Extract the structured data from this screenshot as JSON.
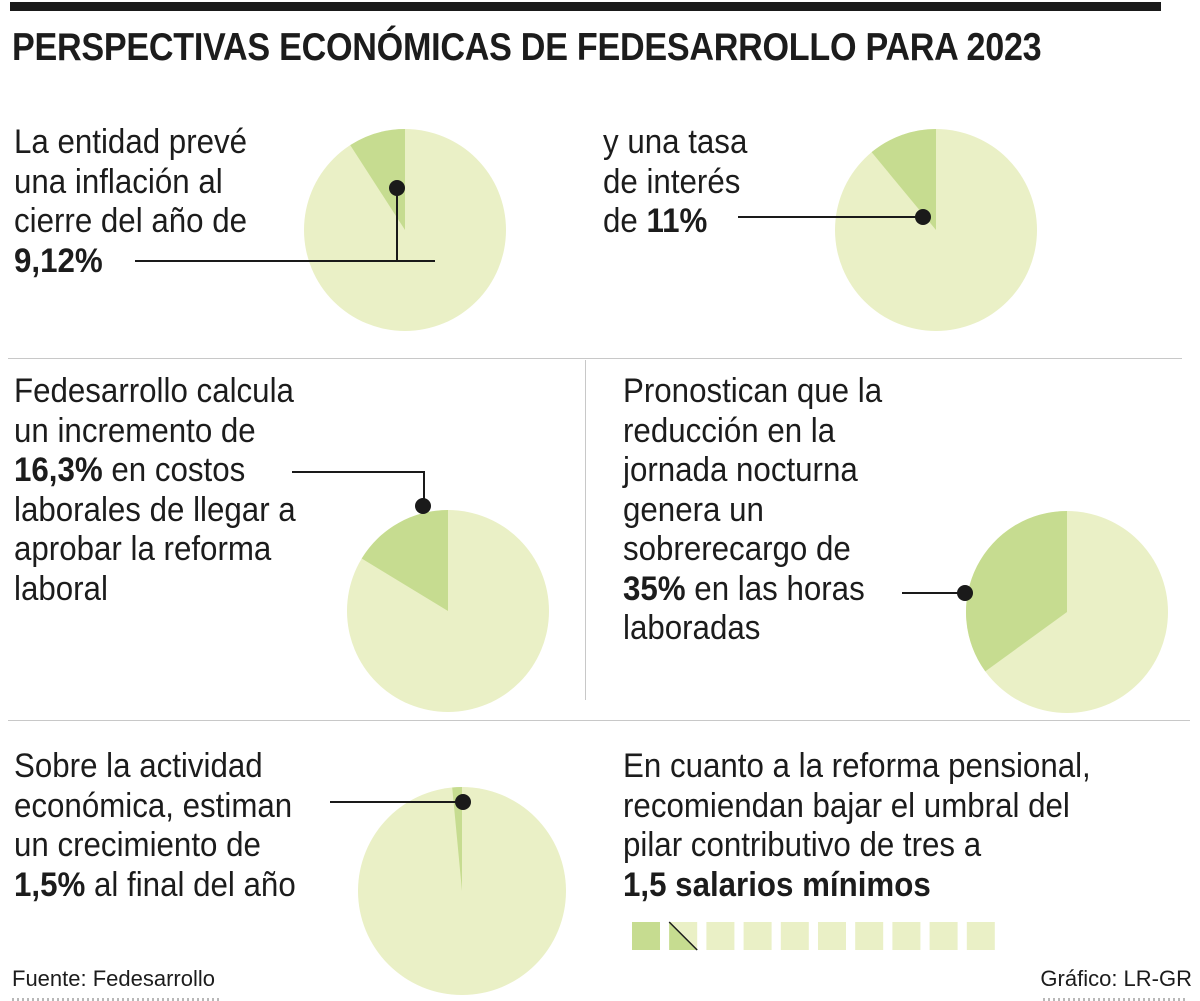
{
  "title": "PERSPECTIVAS ECONÓMICAS DE FEDESARROLLO PARA 2023",
  "colors": {
    "pie_light": "#eaf0c6",
    "pie_accent": "#c6dc90",
    "bar": "#1a1a1a",
    "line": "#1a1a1a"
  },
  "panels": {
    "inflation": {
      "l1": "La entidad prevé",
      "l2": "una inflación al",
      "l3": "cierre del año de",
      "value": "9,12%"
    },
    "interest": {
      "l1": "y una tasa",
      "l2": "de interés",
      "l3_pre": "de ",
      "value": "11%"
    },
    "labor_costs": {
      "l1": "Fedesarrollo calcula",
      "l2": "un incremento de",
      "value": "16,3%",
      "l3_post": " en costos",
      "l4": "laborales de llegar a",
      "l5": "aprobar la reforma",
      "l6": "laboral"
    },
    "night_shift": {
      "l1": "Pronostican que la",
      "l2": "reducción en la",
      "l3": "jornada nocturna",
      "l4": "genera un",
      "l5": "sobrerecargo de",
      "value": "35%",
      "l6_post": " en las horas",
      "l7": "laboradas"
    },
    "growth": {
      "l1": "Sobre la actividad",
      "l2": "económica, estiman",
      "l3": "un crecimiento de",
      "value": "1,5%",
      "l4_post": " al final del año"
    },
    "pension": {
      "l1": "En cuanto a la reforma pensional,",
      "l2": "recomiendan bajar el umbral del",
      "l3": "pilar contributivo de tres a",
      "value": "1,5 salarios mínimos"
    }
  },
  "chart_data": [
    {
      "type": "pie",
      "name": "inflacion",
      "title": "Inflación al cierre del año",
      "values": [
        9.12,
        90.88
      ],
      "label": "9,12%"
    },
    {
      "type": "pie",
      "name": "tasa-interes",
      "title": "Tasa de interés",
      "values": [
        11,
        89
      ],
      "label": "11%"
    },
    {
      "type": "pie",
      "name": "costos-laborales",
      "title": "Incremento en costos laborales",
      "values": [
        16.3,
        83.7
      ],
      "label": "16,3%"
    },
    {
      "type": "pie",
      "name": "sobrerecargo-nocturno",
      "title": "Sobrerecargo horas laboradas",
      "values": [
        35,
        65
      ],
      "label": "35%"
    },
    {
      "type": "pie",
      "name": "crecimiento",
      "title": "Crecimiento de la actividad económica",
      "values": [
        1.5,
        98.5
      ],
      "label": "1,5%"
    },
    {
      "type": "pictogram",
      "name": "salarios-minimos",
      "title": "Umbral del pilar contributivo (salarios mínimos)",
      "highlighted": 1.5,
      "total": 10,
      "label": "1,5 salarios mínimos"
    }
  ],
  "footer": {
    "source": "Fuente: Fedesarrollo",
    "credit": "Gráfico: LR-GR"
  }
}
